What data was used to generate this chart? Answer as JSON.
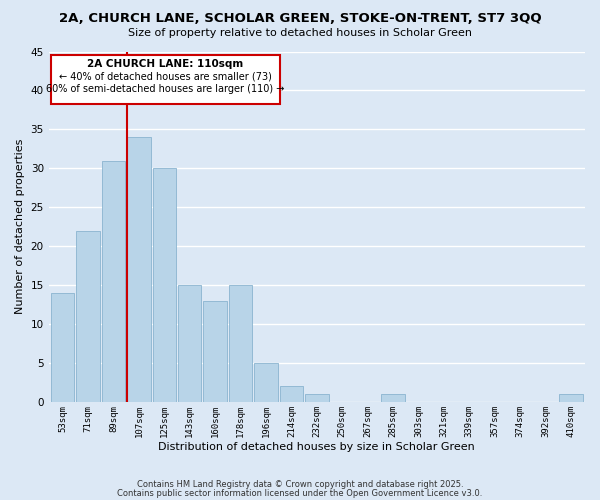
{
  "title": "2A, CHURCH LANE, SCHOLAR GREEN, STOKE-ON-TRENT, ST7 3QQ",
  "subtitle": "Size of property relative to detached houses in Scholar Green",
  "xlabel": "Distribution of detached houses by size in Scholar Green",
  "ylabel": "Number of detached properties",
  "bin_labels": [
    "53sqm",
    "71sqm",
    "89sqm",
    "107sqm",
    "125sqm",
    "143sqm",
    "160sqm",
    "178sqm",
    "196sqm",
    "214sqm",
    "232sqm",
    "250sqm",
    "267sqm",
    "285sqm",
    "303sqm",
    "321sqm",
    "339sqm",
    "357sqm",
    "374sqm",
    "392sqm",
    "410sqm"
  ],
  "bar_values": [
    14,
    22,
    31,
    34,
    30,
    15,
    13,
    15,
    5,
    2,
    1,
    0,
    0,
    1,
    0,
    0,
    0,
    0,
    0,
    0,
    1
  ],
  "bar_color": "#b8d4e8",
  "bar_edge_color": "#8ab4d0",
  "fig_background": "#dce8f5",
  "ax_background": "#dce8f5",
  "grid_color": "#ffffff",
  "vline_x_index": 3,
  "vline_color": "#cc0000",
  "annotation_title": "2A CHURCH LANE: 110sqm",
  "annotation_line1": "← 40% of detached houses are smaller (73)",
  "annotation_line2": "60% of semi-detached houses are larger (110) →",
  "annotation_box_facecolor": "#ffffff",
  "annotation_box_edgecolor": "#cc0000",
  "ylim": [
    0,
    45
  ],
  "yticks": [
    0,
    5,
    10,
    15,
    20,
    25,
    30,
    35,
    40,
    45
  ],
  "footer1": "Contains HM Land Registry data © Crown copyright and database right 2025.",
  "footer2": "Contains public sector information licensed under the Open Government Licence v3.0."
}
